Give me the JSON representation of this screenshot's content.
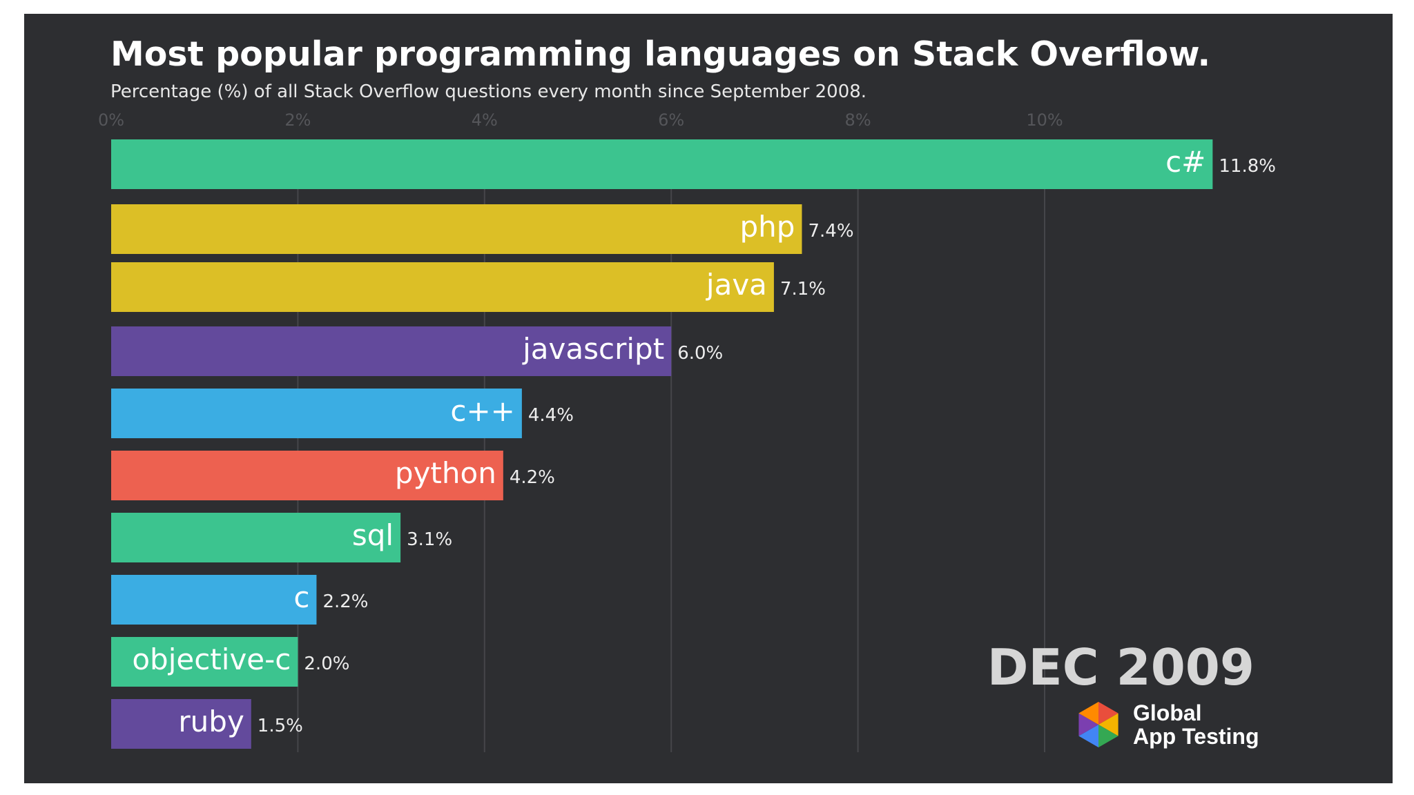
{
  "chart_data": {
    "type": "bar",
    "orientation": "horizontal",
    "title": "Most popular programming languages on Stack Overflow.",
    "subtitle": "Percentage (%) of all Stack Overflow questions every month since September 2008.",
    "xlim": [
      0,
      12
    ],
    "ticks": [
      0,
      2,
      4,
      6,
      8,
      10
    ],
    "tick_labels": [
      "0%",
      "2%",
      "4%",
      "6%",
      "8%",
      "10%"
    ],
    "grid": true,
    "categories": [
      "c#",
      "php",
      "java",
      "javascript",
      "c++",
      "python",
      "sql",
      "c",
      "objective-c",
      "ruby"
    ],
    "values": [
      11.8,
      7.4,
      7.1,
      6.0,
      4.4,
      4.2,
      3.1,
      2.2,
      2.0,
      1.5
    ],
    "value_labels": [
      "11.8%",
      "7.4%",
      "7.1%",
      "6.0%",
      "4.4%",
      "4.2%",
      "3.1%",
      "2.2%",
      "2.0%",
      "1.5%"
    ],
    "colors": [
      "#3cc48f",
      "#dcbf26",
      "#dcbf26",
      "#634a9c",
      "#3bade3",
      "#ed6150",
      "#3cc48f",
      "#3bade3",
      "#3cc48f",
      "#634a9c"
    ],
    "period": "DEC 2009"
  },
  "brand": {
    "line1": "Global",
    "line2": "App Testing",
    "logo_colors": [
      "#e94e3c",
      "#f4b400",
      "#34a853",
      "#4285f4",
      "#7b3fb0",
      "#ff8a00"
    ]
  },
  "theme": {
    "background": "#2d2e31",
    "grid": "#45464a",
    "tick_text": "#55565a",
    "value_text": "#eeeeee"
  }
}
